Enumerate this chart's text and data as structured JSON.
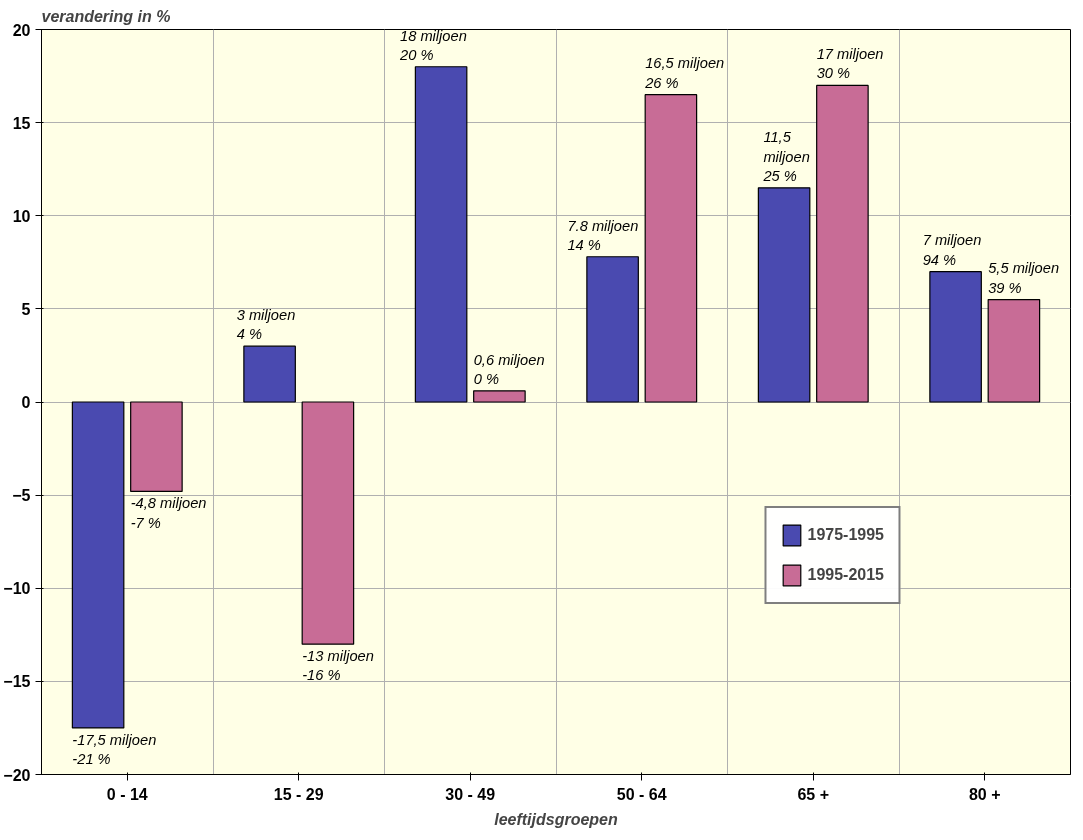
{
  "chart_data": {
    "type": "bar",
    "ylabel": "verandering in %",
    "xlabel": "leeftijdsgroepen",
    "categories": [
      "0 - 14",
      "15 - 29",
      "30 - 49",
      "50 - 64",
      "65 +",
      "80 +"
    ],
    "series": [
      {
        "name": "1975-1995",
        "color": "#4a4ab0",
        "values": [
          -17.5,
          3,
          18,
          7.8,
          11.5,
          7
        ],
        "value_labels": [
          "-17,5 miljoen\n-21 %",
          "3 miljoen\n4 %",
          "18 miljoen\n20 %",
          "7.8 miljoen\n14 %",
          "11,5\nmiljoen\n25 %",
          "7 miljoen\n94 %"
        ]
      },
      {
        "name": "1995-2015",
        "color": "#c86c96",
        "values": [
          -4.8,
          -13,
          0.6,
          16.5,
          17,
          5.5
        ],
        "value_labels": [
          "-4,8 miljoen\n-7 %",
          "-13 miljoen\n-16 %",
          "0,6 miljoen\n0 %",
          "16,5 miljoen\n26 %",
          "17 miljoen\n30 %",
          "5,5 miljoen\n39 %"
        ]
      }
    ],
    "ylim": [
      -20,
      20
    ],
    "yticks": [
      -20,
      -15,
      -10,
      -5,
      0,
      5,
      10,
      15,
      20
    ],
    "grid": true,
    "legend": "bottom right"
  }
}
